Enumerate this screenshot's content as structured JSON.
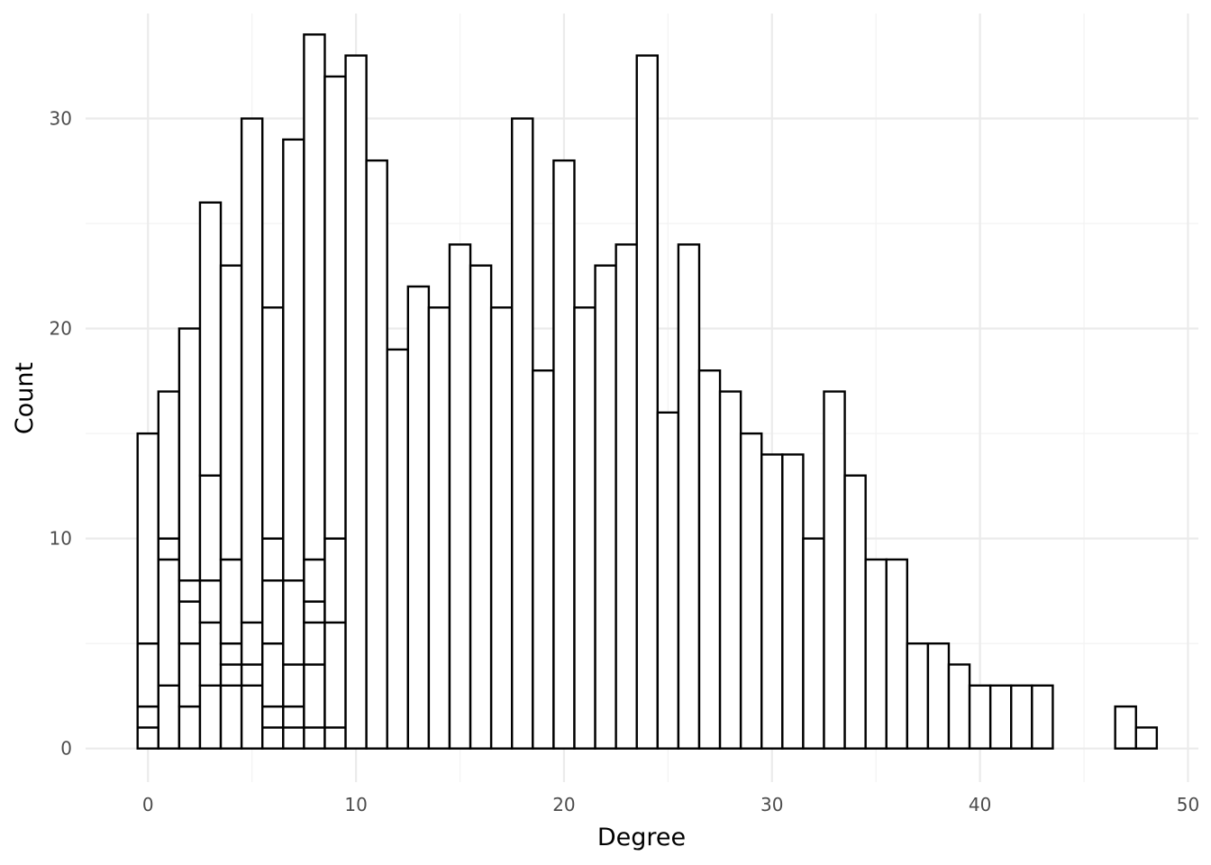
{
  "chart_data": {
    "type": "bar",
    "subtype": "stacked histogram",
    "xlabel": "Degree",
    "ylabel": "Count",
    "xlim": [
      -3,
      50.5
    ],
    "ylim": [
      -1.6,
      35
    ],
    "xticks": [
      0,
      10,
      20,
      30,
      40,
      50
    ],
    "yticks": [
      0,
      10,
      20,
      30
    ],
    "grid": true,
    "legend": "none",
    "fill_color": "#ffffff",
    "outline_color": "#000000",
    "bins": [
      {
        "x": 0,
        "stack": [
          1,
          2,
          5,
          15
        ]
      },
      {
        "x": 1,
        "stack": [
          3,
          9,
          10,
          17
        ]
      },
      {
        "x": 2,
        "stack": [
          2,
          5,
          7,
          8,
          20
        ]
      },
      {
        "x": 3,
        "stack": [
          3,
          6,
          8,
          13,
          26
        ]
      },
      {
        "x": 4,
        "stack": [
          3,
          4,
          5,
          9,
          23
        ]
      },
      {
        "x": 5,
        "stack": [
          3,
          4,
          6,
          30
        ]
      },
      {
        "x": 6,
        "stack": [
          1,
          2,
          5,
          8,
          10,
          21
        ]
      },
      {
        "x": 7,
        "stack": [
          1,
          2,
          4,
          8,
          29
        ]
      },
      {
        "x": 8,
        "stack": [
          1,
          4,
          6,
          7,
          9,
          34
        ]
      },
      {
        "x": 9,
        "stack": [
          1,
          6,
          10,
          32
        ]
      },
      {
        "x": 10,
        "stack": [
          33
        ]
      },
      {
        "x": 11,
        "stack": [
          28
        ]
      },
      {
        "x": 12,
        "stack": [
          19
        ]
      },
      {
        "x": 13,
        "stack": [
          22
        ]
      },
      {
        "x": 14,
        "stack": [
          21
        ]
      },
      {
        "x": 15,
        "stack": [
          24
        ]
      },
      {
        "x": 16,
        "stack": [
          23
        ]
      },
      {
        "x": 17,
        "stack": [
          21
        ]
      },
      {
        "x": 18,
        "stack": [
          30
        ]
      },
      {
        "x": 19,
        "stack": [
          18
        ]
      },
      {
        "x": 20,
        "stack": [
          28
        ]
      },
      {
        "x": 21,
        "stack": [
          21
        ]
      },
      {
        "x": 22,
        "stack": [
          23
        ]
      },
      {
        "x": 23,
        "stack": [
          24
        ]
      },
      {
        "x": 24,
        "stack": [
          33
        ]
      },
      {
        "x": 25,
        "stack": [
          16
        ]
      },
      {
        "x": 26,
        "stack": [
          24
        ]
      },
      {
        "x": 27,
        "stack": [
          18
        ]
      },
      {
        "x": 28,
        "stack": [
          17
        ]
      },
      {
        "x": 29,
        "stack": [
          15
        ]
      },
      {
        "x": 30,
        "stack": [
          14
        ]
      },
      {
        "x": 31,
        "stack": [
          14
        ]
      },
      {
        "x": 32,
        "stack": [
          10
        ]
      },
      {
        "x": 33,
        "stack": [
          17
        ]
      },
      {
        "x": 34,
        "stack": [
          13
        ]
      },
      {
        "x": 35,
        "stack": [
          9
        ]
      },
      {
        "x": 36,
        "stack": [
          9
        ]
      },
      {
        "x": 37,
        "stack": [
          5
        ]
      },
      {
        "x": 38,
        "stack": [
          5
        ]
      },
      {
        "x": 39,
        "stack": [
          4
        ]
      },
      {
        "x": 40,
        "stack": [
          3
        ]
      },
      {
        "x": 41,
        "stack": [
          3
        ]
      },
      {
        "x": 42,
        "stack": [
          3
        ]
      },
      {
        "x": 43,
        "stack": [
          3
        ]
      },
      {
        "x": 47,
        "stack": [
          2
        ]
      },
      {
        "x": 48,
        "stack": [
          1
        ]
      }
    ]
  }
}
